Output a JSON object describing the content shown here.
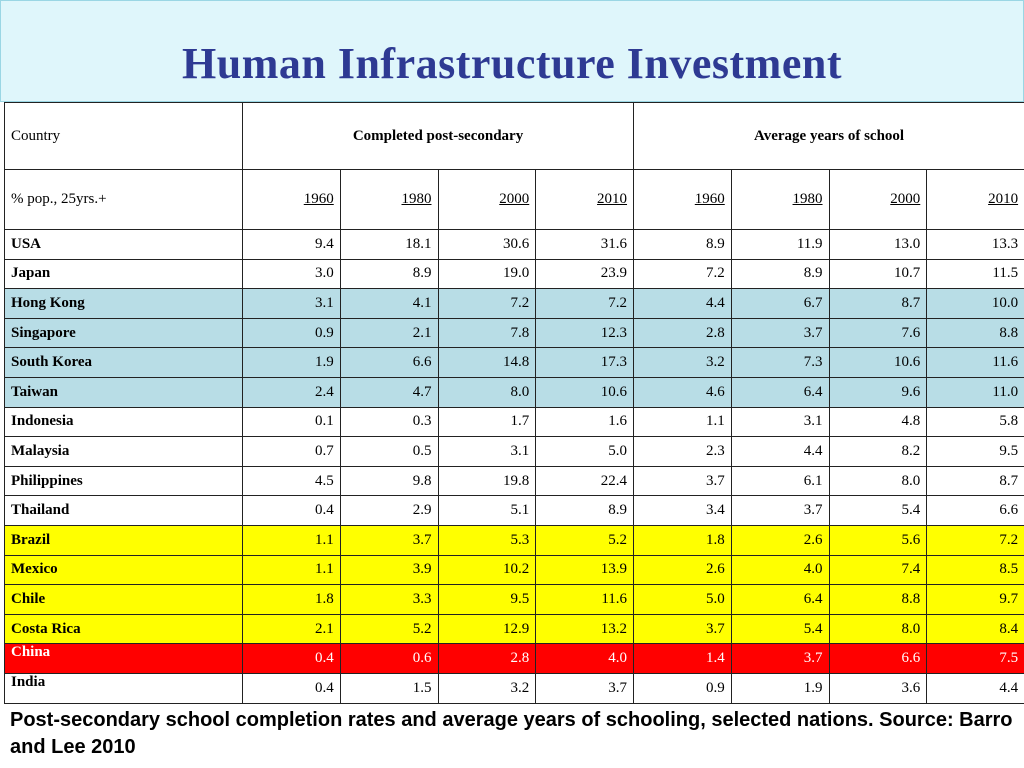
{
  "title": "Human Infrastructure Investment",
  "table": {
    "header": {
      "country_label": "Country",
      "group1": "Completed post-secondary",
      "group2": "Average years of school",
      "subrow_label": "% pop., 25yrs.+",
      "years": [
        "1960",
        "1980",
        "2000",
        "2010",
        "1960",
        "1980",
        "2000",
        "2010"
      ]
    },
    "rows": [
      {
        "country": "USA",
        "highlight": "none",
        "values": [
          "9.4",
          "18.1",
          "30.6",
          "31.6",
          "8.9",
          "11.9",
          "13.0",
          "13.3"
        ]
      },
      {
        "country": "Japan",
        "highlight": "none",
        "values": [
          "3.0",
          "8.9",
          "19.0",
          "23.9",
          "7.2",
          "8.9",
          "10.7",
          "11.5"
        ]
      },
      {
        "country": "Hong Kong",
        "highlight": "blue",
        "values": [
          "3.1",
          "4.1",
          "7.2",
          "7.2",
          "4.4",
          "6.7",
          "8.7",
          "10.0"
        ]
      },
      {
        "country": "Singapore",
        "highlight": "blue",
        "values": [
          "0.9",
          "2.1",
          "7.8",
          "12.3",
          "2.8",
          "3.7",
          "7.6",
          "8.8"
        ]
      },
      {
        "country": "South Korea",
        "highlight": "blue",
        "values": [
          "1.9",
          "6.6",
          "14.8",
          "17.3",
          "3.2",
          "7.3",
          "10.6",
          "11.6"
        ]
      },
      {
        "country": "Taiwan",
        "highlight": "blue",
        "values": [
          "2.4",
          "4.7",
          "8.0",
          "10.6",
          "4.6",
          "6.4",
          "9.6",
          "11.0"
        ]
      },
      {
        "country": "Indonesia",
        "highlight": "none",
        "values": [
          "0.1",
          "0.3",
          "1.7",
          "1.6",
          "1.1",
          "3.1",
          "4.8",
          "5.8"
        ]
      },
      {
        "country": "Malaysia",
        "highlight": "none",
        "values": [
          "0.7",
          "0.5",
          "3.1",
          "5.0",
          "2.3",
          "4.4",
          "8.2",
          "9.5"
        ]
      },
      {
        "country": "Philippines",
        "highlight": "none",
        "values": [
          "4.5",
          "9.8",
          "19.8",
          "22.4",
          "3.7",
          "6.1",
          "8.0",
          "8.7"
        ]
      },
      {
        "country": "Thailand",
        "highlight": "none",
        "values": [
          "0.4",
          "2.9",
          "5.1",
          "8.9",
          "3.4",
          "3.7",
          "5.4",
          "6.6"
        ]
      },
      {
        "country": "Brazil",
        "highlight": "yellow",
        "values": [
          "1.1",
          "3.7",
          "5.3",
          "5.2",
          "1.8",
          "2.6",
          "5.6",
          "7.2"
        ]
      },
      {
        "country": "Mexico",
        "highlight": "yellow",
        "values": [
          "1.1",
          "3.9",
          "10.2",
          "13.9",
          "2.6",
          "4.0",
          "7.4",
          "8.5"
        ]
      },
      {
        "country": "Chile",
        "highlight": "yellow",
        "values": [
          "1.8",
          "3.3",
          "9.5",
          "11.6",
          "5.0",
          "6.4",
          "8.8",
          "9.7"
        ]
      },
      {
        "country": "Costa Rica",
        "highlight": "yellow",
        "values": [
          "2.1",
          "5.2",
          "12.9",
          "13.2",
          "3.7",
          "5.4",
          "8.0",
          "8.4"
        ]
      },
      {
        "country": "China",
        "highlight": "red",
        "values": [
          "0.4",
          "0.6",
          "2.8",
          "4.0",
          "1.4",
          "3.7",
          "6.6",
          "7.5"
        ]
      },
      {
        "country": "India",
        "highlight": "none",
        "values": [
          "0.4",
          "1.5",
          "3.2",
          "3.7",
          "0.9",
          "1.9",
          "3.6",
          "4.4"
        ]
      }
    ]
  },
  "caption": "Post-secondary school completion rates and average years of schooling, selected nations. Source: Barro and Lee 2010",
  "colors": {
    "title": "#2e3a93",
    "banner": "#dff6fb",
    "blue_highlight": "#b8dde6",
    "yellow_highlight": "#ffff00",
    "red_highlight": "#ff0000"
  }
}
